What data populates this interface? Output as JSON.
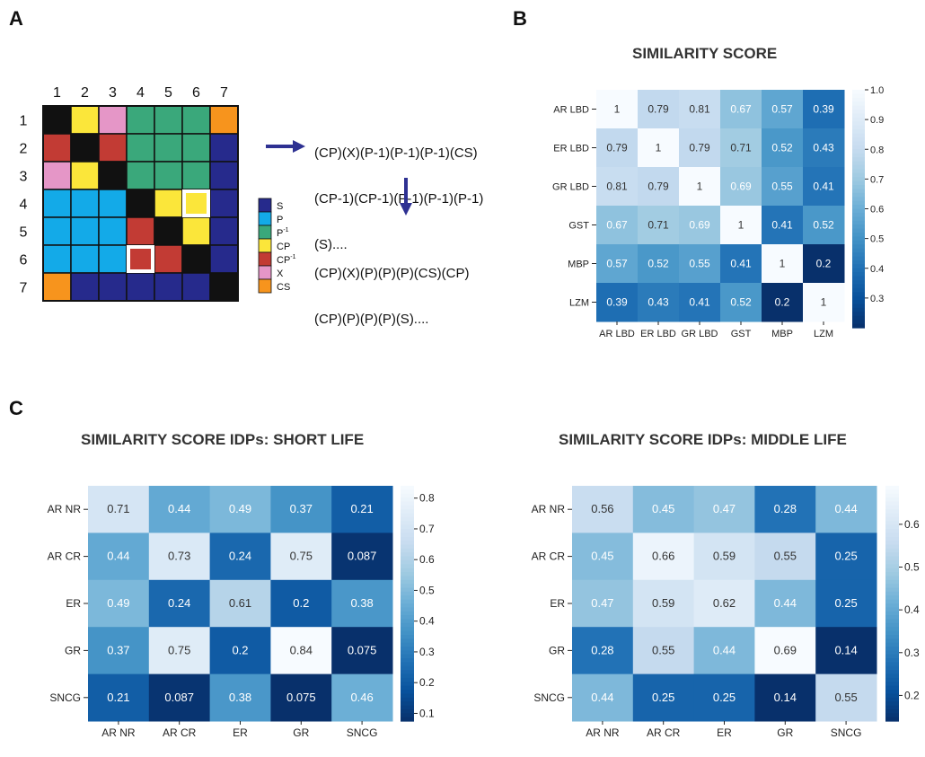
{
  "panels": {
    "a": "A",
    "b": "B",
    "c": "C"
  },
  "panel_a": {
    "col_numbers": [
      "1",
      "2",
      "3",
      "4",
      "5",
      "6",
      "7"
    ],
    "row_numbers": [
      "1",
      "2",
      "3",
      "4",
      "5",
      "6",
      "7"
    ],
    "colors": {
      "S": "#262a8c",
      "P": "#13aae8",
      "P-1": "#3aa87b",
      "CP": "#fbe63a",
      "CP-1": "#c23b34",
      "X": "#e596c7",
      "CS": "#f7941d",
      "diag": "#111111"
    },
    "grid": [
      [
        "diag",
        "CP",
        "X",
        "P-1",
        "P-1",
        "P-1",
        "CS"
      ],
      [
        "CP-1",
        "diag",
        "CP-1",
        "P-1",
        "P-1",
        "P-1",
        "S"
      ],
      [
        "X",
        "CP",
        "diag",
        "P-1",
        "P-1",
        "P-1",
        "S"
      ],
      [
        "P",
        "P",
        "P",
        "diag",
        "CP",
        "CP",
        "S"
      ],
      [
        "P",
        "P",
        "P",
        "CP-1",
        "diag",
        "CP",
        "S"
      ],
      [
        "P",
        "P",
        "P",
        "CP-1",
        "CP-1",
        "diag",
        "S"
      ],
      [
        "CS",
        "S",
        "S",
        "S",
        "S",
        "S",
        "diag"
      ]
    ],
    "legend": [
      {
        "key": "S",
        "label": "S"
      },
      {
        "key": "P",
        "label": "P"
      },
      {
        "key": "P-1",
        "label": "P-1"
      },
      {
        "key": "CP",
        "label": "CP"
      },
      {
        "key": "CP-1",
        "label": "CP-1"
      },
      {
        "key": "X",
        "label": "X"
      },
      {
        "key": "CS",
        "label": "CS"
      }
    ],
    "seq1": [
      "(CP)(X)(P-1)(P-1)(P-1)(CS)",
      "(CP-1)(CP-1)(P-1)(P-1)(P-1)",
      "(S)...."
    ],
    "seq2": [
      "(CP)(X)(P)(P)(P)(CS)(CP)",
      "(CP)(P)(P)(P)(S)...."
    ]
  },
  "chart_data": [
    {
      "type": "heatmap",
      "title": "SIMILARITY SCORE",
      "rows": [
        "AR LBD",
        "ER LBD",
        "GR LBD",
        "GST",
        "MBP",
        "LZM"
      ],
      "cols": [
        "AR LBD",
        "ER LBD",
        "GR LBD",
        "GST",
        "MBP",
        "LZM"
      ],
      "values": [
        [
          1,
          0.79,
          0.81,
          0.67,
          0.57,
          0.39
        ],
        [
          0.79,
          1,
          0.79,
          0.71,
          0.52,
          0.43
        ],
        [
          0.81,
          0.79,
          1,
          0.69,
          0.55,
          0.41
        ],
        [
          0.67,
          0.71,
          0.69,
          1,
          0.41,
          0.52
        ],
        [
          0.57,
          0.52,
          0.55,
          0.41,
          1,
          0.2
        ],
        [
          0.39,
          0.43,
          0.41,
          0.52,
          0.2,
          1
        ]
      ],
      "vmin": 0.2,
      "vmax": 1.0,
      "colorbar_ticks": [
        1.0,
        0.9,
        0.8,
        0.7,
        0.6,
        0.5,
        0.4,
        0.3
      ],
      "colorbar_tick_labels": [
        "1.0",
        "0.9",
        "0.8",
        "0.7",
        "0.6",
        "0.5",
        "0.4",
        "0.3"
      ],
      "colormap": "Blues_r"
    },
    {
      "type": "heatmap",
      "title": "SIMILARITY SCORE IDPs: SHORT LIFE",
      "rows": [
        "AR NR",
        "AR CR",
        "ER",
        "GR",
        "SNCG"
      ],
      "cols": [
        "AR NR",
        "AR CR",
        "ER",
        "GR",
        "SNCG"
      ],
      "values": [
        [
          0.71,
          0.44,
          0.49,
          0.37,
          0.21
        ],
        [
          0.44,
          0.73,
          0.24,
          0.75,
          0.087
        ],
        [
          0.49,
          0.24,
          0.61,
          0.2,
          0.38
        ],
        [
          0.37,
          0.75,
          0.2,
          0.84,
          0.075
        ],
        [
          0.21,
          0.087,
          0.38,
          0.075,
          0.46
        ]
      ],
      "vmin": 0.075,
      "vmax": 0.84,
      "colorbar_ticks": [
        0.8,
        0.7,
        0.6,
        0.5,
        0.4,
        0.3,
        0.2,
        0.1
      ],
      "colorbar_tick_labels": [
        "0.8",
        "0.7",
        "0.6",
        "0.5",
        "0.4",
        "0.3",
        "0.2",
        "0.1"
      ],
      "colormap": "Blues_r"
    },
    {
      "type": "heatmap",
      "title": "SIMILARITY SCORE IDPs: MIDDLE LIFE",
      "rows": [
        "AR NR",
        "AR CR",
        "ER",
        "GR",
        "SNCG"
      ],
      "cols": [
        "AR NR",
        "AR CR",
        "ER",
        "GR",
        "SNCG"
      ],
      "values": [
        [
          0.56,
          0.45,
          0.47,
          0.28,
          0.44
        ],
        [
          0.45,
          0.66,
          0.59,
          0.55,
          0.25
        ],
        [
          0.47,
          0.59,
          0.62,
          0.44,
          0.25
        ],
        [
          0.28,
          0.55,
          0.44,
          0.69,
          0.14
        ],
        [
          0.44,
          0.25,
          0.25,
          0.14,
          0.55
        ]
      ],
      "vmin": 0.14,
      "vmax": 0.69,
      "colorbar_ticks": [
        0.6,
        0.5,
        0.4,
        0.3,
        0.2
      ],
      "colorbar_tick_labels": [
        "0.6",
        "0.5",
        "0.4",
        "0.3",
        "0.2"
      ],
      "colormap": "Blues_r"
    }
  ]
}
